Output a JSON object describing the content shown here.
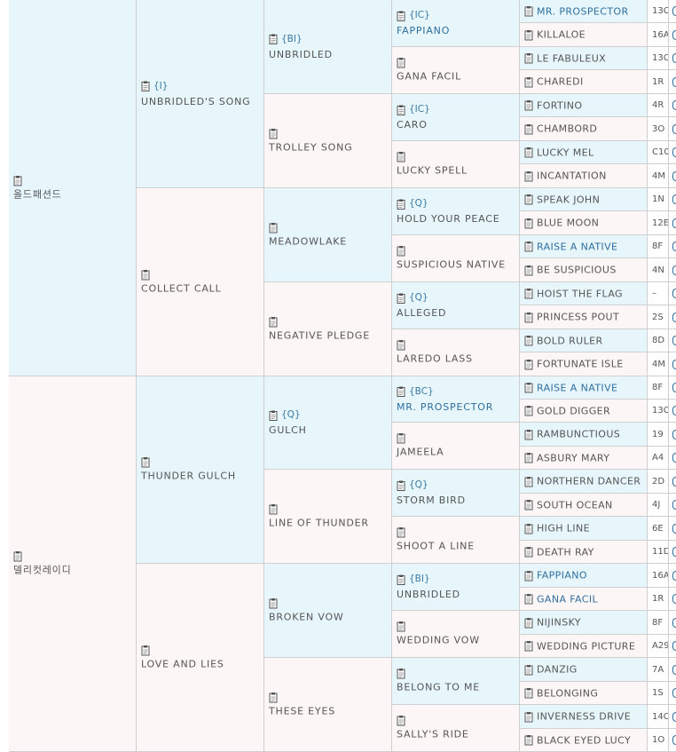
{
  "pedigree": {
    "gen1": [
      {
        "name": "올드패션드",
        "tag": ""
      },
      {
        "name": "델리컷레이디",
        "tag": ""
      }
    ],
    "gen2": [
      {
        "name": "UNBRIDLED'S SONG",
        "tag": "{I}"
      },
      {
        "name": "COLLECT CALL",
        "tag": ""
      },
      {
        "name": "THUNDER GULCH",
        "tag": ""
      },
      {
        "name": "LOVE AND LIES",
        "tag": ""
      }
    ],
    "gen3": [
      {
        "name": "UNBRIDLED",
        "tag": "{BI}"
      },
      {
        "name": "TROLLEY SONG",
        "tag": ""
      },
      {
        "name": "MEADOWLAKE",
        "tag": ""
      },
      {
        "name": "NEGATIVE PLEDGE",
        "tag": ""
      },
      {
        "name": "GULCH",
        "tag": "{Q}"
      },
      {
        "name": "LINE OF THUNDER",
        "tag": ""
      },
      {
        "name": "BROKEN VOW",
        "tag": ""
      },
      {
        "name": "THESE EYES",
        "tag": ""
      }
    ],
    "gen4": [
      {
        "name": "FAPPIANO",
        "tag": "{IC}",
        "link": true
      },
      {
        "name": "GANA FACIL",
        "tag": ""
      },
      {
        "name": "CARO",
        "tag": "{IC}"
      },
      {
        "name": "LUCKY SPELL",
        "tag": ""
      },
      {
        "name": "HOLD YOUR PEACE",
        "tag": "{Q}"
      },
      {
        "name": "SUSPICIOUS NATIVE",
        "tag": ""
      },
      {
        "name": "ALLEGED",
        "tag": "{Q}"
      },
      {
        "name": "LAREDO LASS",
        "tag": ""
      },
      {
        "name": "MR. PROSPECTOR",
        "tag": "{BC}",
        "link": true
      },
      {
        "name": "JAMEELA",
        "tag": ""
      },
      {
        "name": "STORM BIRD",
        "tag": "{Q}"
      },
      {
        "name": "SHOOT A LINE",
        "tag": ""
      },
      {
        "name": "UNBRIDLED",
        "tag": "{BI}"
      },
      {
        "name": "WEDDING VOW",
        "tag": ""
      },
      {
        "name": "BELONG TO ME",
        "tag": ""
      },
      {
        "name": "SALLY'S RIDE",
        "tag": ""
      }
    ],
    "gen5": [
      {
        "name": "MR. PROSPECTOR",
        "code": "13C",
        "link": true
      },
      {
        "name": "KILLALOE",
        "code": "16A"
      },
      {
        "name": "LE FABULEUX",
        "code": "13C"
      },
      {
        "name": "CHAREDI",
        "code": "1R"
      },
      {
        "name": "FORTINO",
        "code": "4R"
      },
      {
        "name": "CHAMBORD",
        "code": "3O"
      },
      {
        "name": "LUCKY MEL",
        "code": "C10"
      },
      {
        "name": "INCANTATION",
        "code": "4M"
      },
      {
        "name": "SPEAK JOHN",
        "code": "1N"
      },
      {
        "name": "BLUE MOON",
        "code": "12E"
      },
      {
        "name": "RAISE A NATIVE",
        "code": "8F",
        "link": true
      },
      {
        "name": "BE SUSPICIOUS",
        "code": "4N"
      },
      {
        "name": "HOIST THE FLAG",
        "code": "–"
      },
      {
        "name": "PRINCESS POUT",
        "code": "2S"
      },
      {
        "name": "BOLD RULER",
        "code": "8D"
      },
      {
        "name": "FORTUNATE ISLE",
        "code": "4M"
      },
      {
        "name": "RAISE A NATIVE",
        "code": "8F",
        "link": true
      },
      {
        "name": "GOLD DIGGER",
        "code": "13C"
      },
      {
        "name": "RAMBUNCTIOUS",
        "code": "19"
      },
      {
        "name": "ASBURY MARY",
        "code": "A4"
      },
      {
        "name": "NORTHERN DANCER",
        "code": "2D"
      },
      {
        "name": "SOUTH OCEAN",
        "code": "4J"
      },
      {
        "name": "HIGH LINE",
        "code": "6E"
      },
      {
        "name": "DEATH RAY",
        "code": "11D"
      },
      {
        "name": "FAPPIANO",
        "code": "16A",
        "link": true
      },
      {
        "name": "GANA FACIL",
        "code": "1R",
        "link": true
      },
      {
        "name": "NIJINSKY",
        "code": "8F"
      },
      {
        "name": "WEDDING PICTURE",
        "code": "A29"
      },
      {
        "name": "DANZIG",
        "code": "7A"
      },
      {
        "name": "BELONGING",
        "code": "1S"
      },
      {
        "name": "INVERNESS DRIVE",
        "code": "14C"
      },
      {
        "name": "BLACK EYED LUCY",
        "code": "1O"
      }
    ]
  },
  "colors": {
    "sire_bg": "#e6f6fb",
    "dam_bg": "#fdf6f6",
    "link": "#2f6f9f",
    "border": "#cfcfcf"
  },
  "icons": {
    "record": "clipboard-icon",
    "tail": "circle-icon"
  }
}
